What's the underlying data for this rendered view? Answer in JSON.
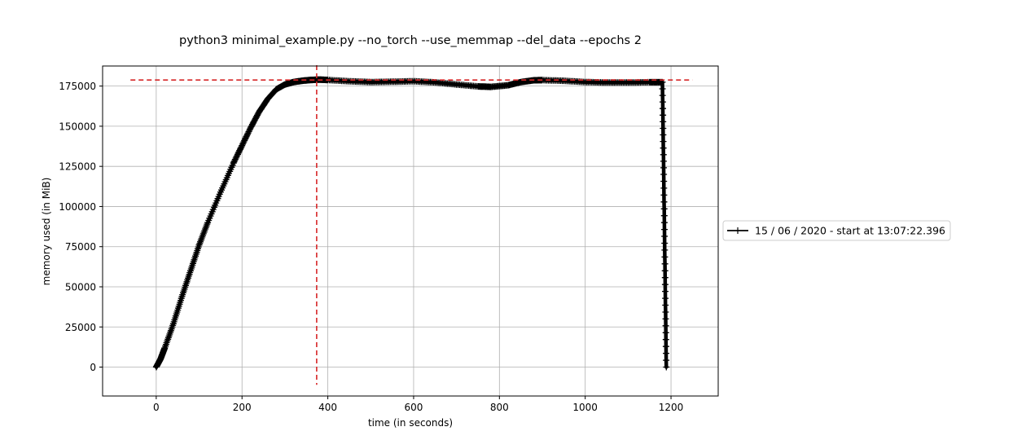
{
  "chart_data": {
    "type": "line",
    "title": "python3 minimal_example.py --no_torch --use_memmap --del_data --epochs 2",
    "xlabel": "time (in seconds)",
    "ylabel": "memory used (in MiB)",
    "xlim": [
      -125,
      1310
    ],
    "ylim": [
      -18000,
      187500
    ],
    "xticks": [
      0,
      200,
      400,
      600,
      800,
      1000,
      1200
    ],
    "yticks": [
      0,
      25000,
      50000,
      75000,
      100000,
      125000,
      150000,
      175000
    ],
    "grid": true,
    "legend": {
      "placement": "right-outside",
      "entries": [
        "15 / 06 / 2020 - start at 13:07:22.396"
      ]
    },
    "series": [
      {
        "name": "15 / 06 / 2020 - start at 13:07:22.396",
        "color": "#000000",
        "marker": "+",
        "x": [
          0,
          10,
          20,
          40,
          60,
          80,
          100,
          120,
          150,
          180,
          200,
          220,
          240,
          260,
          280,
          300,
          320,
          340,
          360,
          380,
          400,
          450,
          500,
          550,
          600,
          650,
          700,
          750,
          780,
          820,
          850,
          880,
          900,
          950,
          1000,
          1050,
          1100,
          1150,
          1180,
          1183,
          1186,
          1189
        ],
        "y": [
          0,
          5000,
          12000,
          27000,
          44000,
          60000,
          76000,
          90000,
          109000,
          127000,
          138000,
          149000,
          159000,
          167000,
          173000,
          176000,
          177500,
          178300,
          178800,
          179000,
          178800,
          178000,
          177500,
          177700,
          178000,
          177300,
          176000,
          174800,
          174500,
          175500,
          177500,
          178600,
          178700,
          178300,
          177500,
          177200,
          177200,
          177400,
          177400,
          120000,
          60000,
          0
        ]
      }
    ],
    "reference_lines": [
      {
        "orientation": "horizontal",
        "value": 178800,
        "from": -60,
        "to": 1250,
        "color": "#d62728",
        "style": "dashed"
      },
      {
        "orientation": "vertical",
        "value": 374,
        "from": -11000,
        "to": 188000,
        "color": "#d62728",
        "style": "dashed"
      }
    ]
  }
}
